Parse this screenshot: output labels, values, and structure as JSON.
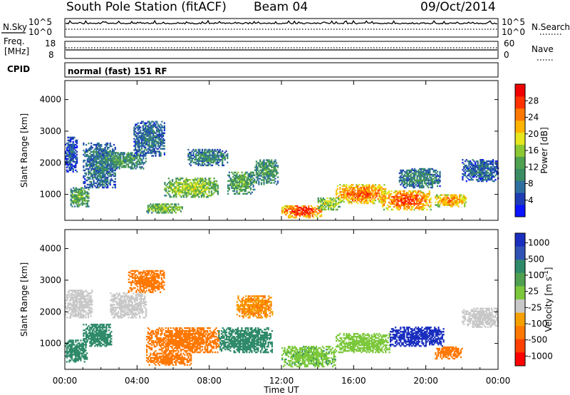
{
  "header": {
    "station": "South Pole Station (fitACF)",
    "beam": "Beam 04",
    "date": "09/Oct/2014"
  },
  "status_panel": {
    "nsky_label": "N.Sky",
    "nsearch_label": "N.Search",
    "freq_label_1": "Freq.",
    "freq_label_2": "[MHz]",
    "nave_label": "Nave",
    "cpid_label": "CPID",
    "cpid_text": "normal (fast) 151 RF",
    "noise_left_ticks": [
      "10^5",
      "10^0"
    ],
    "noise_right_ticks": [
      "10^5",
      "10^0"
    ],
    "freq_left_ticks": [
      "18",
      "8"
    ],
    "freq_right_ticks": [
      "60",
      "0"
    ]
  },
  "x_axis": {
    "label": "Time UT",
    "ticks": [
      "00:00",
      "04:00",
      "08:00",
      "12:00",
      "16:00",
      "20:00",
      "00:00"
    ]
  },
  "colors": {
    "power_scale": [
      "#0a14ff",
      "#1e3cb4",
      "#2f6fa0",
      "#3a8c64",
      "#4fa04f",
      "#8cc832",
      "#e6e61e",
      "#ffb400",
      "#ff7800",
      "#ff3200",
      "#f00000"
    ],
    "velocity_scale": [
      "#1a2fbf",
      "#2f52b4",
      "#2f8a6a",
      "#4fa050",
      "#7cc83c",
      "#c8c8c8",
      "#f5a000",
      "#ff7800",
      "#ff4000",
      "#ff0000"
    ]
  },
  "chart_data": [
    {
      "type": "heatmap",
      "title": "",
      "xlabel": "Time UT",
      "ylabel": "Slant Range [km]",
      "xlim": [
        0,
        24
      ],
      "ylim": [
        180,
        4600
      ],
      "yticks": [
        1000,
        2000,
        3000,
        4000
      ],
      "colorbar": {
        "label": "Power [dB]",
        "range": [
          0,
          32
        ],
        "ticks": [
          4,
          8,
          12,
          16,
          20,
          24,
          28
        ]
      },
      "regions": [
        {
          "t": [
            0.0,
            0.7
          ],
          "r": [
            1700,
            2800
          ],
          "v": 6
        },
        {
          "t": [
            0.3,
            1.3
          ],
          "r": [
            600,
            1200
          ],
          "v": 14
        },
        {
          "t": [
            1.0,
            2.8
          ],
          "r": [
            1200,
            2600
          ],
          "v": 9
        },
        {
          "t": [
            2.0,
            4.5
          ],
          "r": [
            1800,
            2300
          ],
          "v": 12
        },
        {
          "t": [
            3.8,
            5.5
          ],
          "r": [
            2200,
            3300
          ],
          "v": 8
        },
        {
          "t": [
            4.5,
            6.5
          ],
          "r": [
            400,
            700
          ],
          "v": 16
        },
        {
          "t": [
            5.5,
            8.5
          ],
          "r": [
            900,
            1500
          ],
          "v": 17
        },
        {
          "t": [
            6.8,
            9.0
          ],
          "r": [
            1900,
            2400
          ],
          "v": 10
        },
        {
          "t": [
            9.0,
            10.5
          ],
          "r": [
            1000,
            1700
          ],
          "v": 14
        },
        {
          "t": [
            10.5,
            11.8
          ],
          "r": [
            1300,
            2100
          ],
          "v": 12
        },
        {
          "t": [
            12.0,
            14.2
          ],
          "r": [
            250,
            650
          ],
          "v": 28
        },
        {
          "t": [
            14.0,
            15.2
          ],
          "r": [
            500,
            900
          ],
          "v": 18
        },
        {
          "t": [
            15.0,
            17.8
          ],
          "r": [
            700,
            1300
          ],
          "v": 26
        },
        {
          "t": [
            17.5,
            20.3
          ],
          "r": [
            500,
            1100
          ],
          "v": 27
        },
        {
          "t": [
            18.5,
            20.8
          ],
          "r": [
            1200,
            1800
          ],
          "v": 10
        },
        {
          "t": [
            20.5,
            22.2
          ],
          "r": [
            600,
            1000
          ],
          "v": 24
        },
        {
          "t": [
            22.0,
            24.0
          ],
          "r": [
            1400,
            2100
          ],
          "v": 7
        }
      ]
    },
    {
      "type": "heatmap",
      "title": "",
      "xlabel": "Time UT",
      "ylabel": "Slant Range [km]",
      "xlim": [
        0,
        24
      ],
      "ylim": [
        180,
        4600
      ],
      "yticks": [
        1000,
        2000,
        3000,
        4000
      ],
      "colorbar": {
        "label": "Velocity [m s^-1]",
        "tick_labels": [
          "1000",
          "500",
          "100",
          "25",
          "-25",
          "-100",
          "-500",
          "-1000"
        ]
      },
      "regions": [
        {
          "t": [
            0.0,
            1.5
          ],
          "r": [
            1800,
            2700
          ],
          "v": 0
        },
        {
          "t": [
            0.0,
            1.2
          ],
          "r": [
            400,
            1100
          ],
          "v": 150
        },
        {
          "t": [
            1.0,
            2.6
          ],
          "r": [
            900,
            1600
          ],
          "v": 300
        },
        {
          "t": [
            2.5,
            4.5
          ],
          "r": [
            1800,
            2600
          ],
          "v": 5
        },
        {
          "t": [
            3.5,
            5.5
          ],
          "r": [
            2600,
            3300
          ],
          "v": -150
        },
        {
          "t": [
            4.5,
            8.5
          ],
          "r": [
            700,
            1500
          ],
          "v": -350
        },
        {
          "t": [
            4.5,
            7.0
          ],
          "r": [
            300,
            700
          ],
          "v": -200
        },
        {
          "t": [
            8.5,
            11.5
          ],
          "r": [
            700,
            1500
          ],
          "v": 150
        },
        {
          "t": [
            9.5,
            11.5
          ],
          "r": [
            1800,
            2500
          ],
          "v": -100
        },
        {
          "t": [
            12.0,
            15.0
          ],
          "r": [
            250,
            900
          ],
          "v": 80
        },
        {
          "t": [
            15.0,
            18.0
          ],
          "r": [
            700,
            1300
          ],
          "v": 60
        },
        {
          "t": [
            18.0,
            21.0
          ],
          "r": [
            900,
            1500
          ],
          "v": 800
        },
        {
          "t": [
            20.5,
            22.0
          ],
          "r": [
            500,
            900
          ],
          "v": -300
        },
        {
          "t": [
            22.0,
            24.0
          ],
          "r": [
            1500,
            2100
          ],
          "v": 0
        }
      ]
    }
  ]
}
